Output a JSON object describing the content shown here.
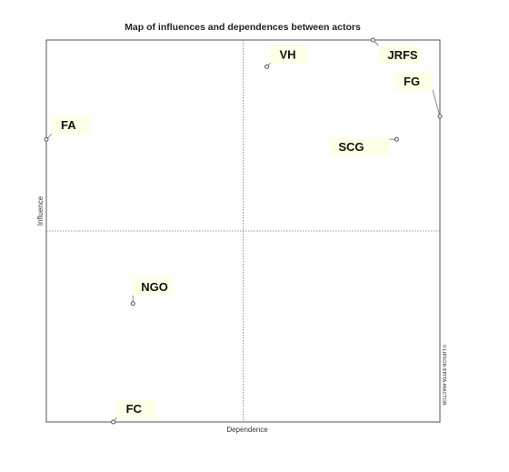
{
  "chart_data": {
    "type": "scatter",
    "title": "Map of influences and dependences between actors",
    "xlabel": "Dependence",
    "ylabel": "Influence",
    "credit": "©LIPSOR-EPITA-MACTOR",
    "grid": "quadrant dividers (dotted)",
    "points": [
      {
        "label": "JRFS",
        "x": 0.83,
        "y": 1.0
      },
      {
        "label": "VH",
        "x": 0.56,
        "y": 0.93
      },
      {
        "label": "FG",
        "x": 1.0,
        "y": 0.8
      },
      {
        "label": "FA",
        "x": 0.0,
        "y": 0.74
      },
      {
        "label": "SCG",
        "x": 0.89,
        "y": 0.74
      },
      {
        "label": "NGO",
        "x": 0.22,
        "y": 0.31
      },
      {
        "label": "FC",
        "x": 0.17,
        "y": 0.0
      }
    ]
  }
}
